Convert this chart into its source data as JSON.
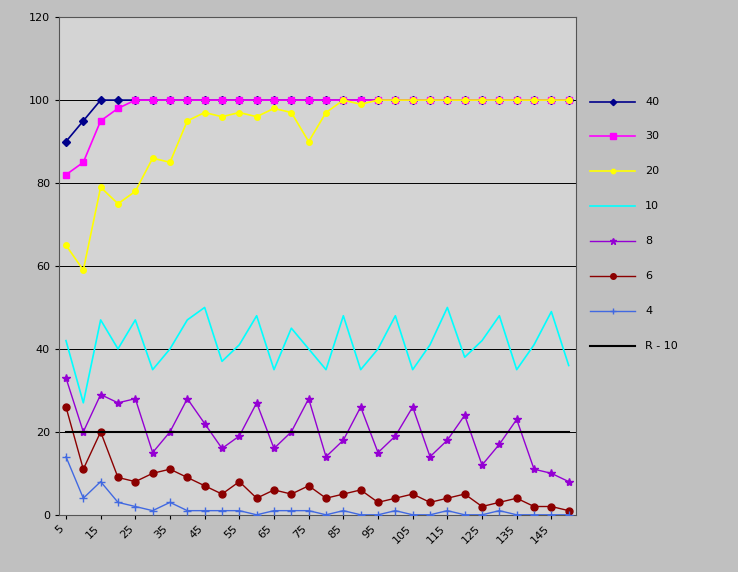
{
  "x_values": [
    5,
    10,
    15,
    20,
    25,
    30,
    35,
    40,
    45,
    50,
    55,
    60,
    65,
    70,
    75,
    80,
    85,
    90,
    95,
    100,
    105,
    110,
    115,
    120,
    125,
    130,
    135,
    140,
    145,
    150
  ],
  "series": {
    "40": {
      "color": "#00008B",
      "marker": "D",
      "markersize": 4,
      "linewidth": 1.2,
      "label": "40",
      "values": [
        90,
        95,
        100,
        100,
        100,
        100,
        100,
        100,
        100,
        100,
        100,
        100,
        100,
        100,
        100,
        100,
        100,
        100,
        100,
        100,
        100,
        100,
        100,
        100,
        100,
        100,
        100,
        100,
        100,
        100
      ]
    },
    "30": {
      "color": "#FF00FF",
      "marker": "s",
      "markersize": 5,
      "linewidth": 1.2,
      "label": "30",
      "values": [
        82,
        85,
        95,
        98,
        100,
        100,
        100,
        100,
        100,
        100,
        100,
        100,
        100,
        100,
        100,
        100,
        100,
        100,
        100,
        100,
        100,
        100,
        100,
        100,
        100,
        100,
        100,
        100,
        100,
        100
      ]
    },
    "20": {
      "color": "#FFFF00",
      "marker": "o",
      "markersize": 4,
      "linewidth": 1.2,
      "label": "20",
      "values": [
        65,
        59,
        79,
        75,
        78,
        86,
        85,
        95,
        97,
        96,
        97,
        96,
        98,
        97,
        90,
        97,
        100,
        99,
        100,
        100,
        100,
        100,
        100,
        100,
        100,
        100,
        100,
        100,
        100,
        100
      ]
    },
    "10": {
      "color": "#00FFFF",
      "marker": "None",
      "markersize": 3,
      "linewidth": 1.2,
      "label": "10",
      "values": [
        42,
        27,
        47,
        40,
        47,
        35,
        40,
        47,
        50,
        37,
        41,
        48,
        35,
        45,
        40,
        35,
        48,
        35,
        40,
        48,
        35,
        41,
        50,
        38,
        42,
        48,
        35,
        41,
        49,
        36
      ]
    },
    "8": {
      "color": "#9400D3",
      "marker": "*",
      "markersize": 6,
      "linewidth": 1.0,
      "label": "8",
      "values": [
        33,
        20,
        29,
        27,
        28,
        15,
        20,
        28,
        22,
        16,
        19,
        27,
        16,
        20,
        28,
        14,
        18,
        26,
        15,
        19,
        26,
        14,
        18,
        24,
        12,
        17,
        23,
        11,
        10,
        8
      ]
    },
    "6": {
      "color": "#8B0000",
      "marker": "o",
      "markersize": 5,
      "linewidth": 1.0,
      "label": "6",
      "values": [
        26,
        11,
        20,
        9,
        8,
        10,
        11,
        9,
        7,
        5,
        8,
        4,
        6,
        5,
        7,
        4,
        5,
        6,
        3,
        4,
        5,
        3,
        4,
        5,
        2,
        3,
        4,
        2,
        2,
        1
      ]
    },
    "4": {
      "color": "#4169E1",
      "marker": "+",
      "markersize": 6,
      "linewidth": 1.0,
      "label": "4",
      "values": [
        14,
        4,
        8,
        3,
        2,
        1,
        3,
        1,
        1,
        1,
        1,
        0,
        1,
        1,
        1,
        0,
        1,
        0,
        0,
        1,
        0,
        0,
        1,
        0,
        0,
        1,
        0,
        0,
        0,
        0
      ]
    },
    "R - 10": {
      "color": "#000000",
      "marker": "None",
      "markersize": 0,
      "linewidth": 1.5,
      "label": "R - 10",
      "values": [
        20,
        20,
        20,
        20,
        20,
        20,
        20,
        20,
        20,
        20,
        20,
        20,
        20,
        20,
        20,
        20,
        20,
        20,
        20,
        20,
        20,
        20,
        20,
        20,
        20,
        20,
        20,
        20,
        20,
        20
      ]
    }
  },
  "xlim": [
    3,
    152
  ],
  "ylim": [
    0,
    120
  ],
  "yticks": [
    0,
    20,
    40,
    60,
    80,
    100,
    120
  ],
  "xticks": [
    5,
    15,
    25,
    35,
    45,
    55,
    65,
    75,
    85,
    95,
    105,
    115,
    125,
    135,
    145
  ],
  "plot_bg_color": "#D4D4D4",
  "outer_bg_color": "#C0C0C0",
  "grid_color": "#000000",
  "legend_order": [
    "40",
    "30",
    "20",
    "10",
    "8",
    "6",
    "4",
    "R - 10"
  ],
  "legend_facecolor": "#E8E8E8",
  "figwidth": 7.38,
  "figheight": 5.72,
  "dpi": 100
}
